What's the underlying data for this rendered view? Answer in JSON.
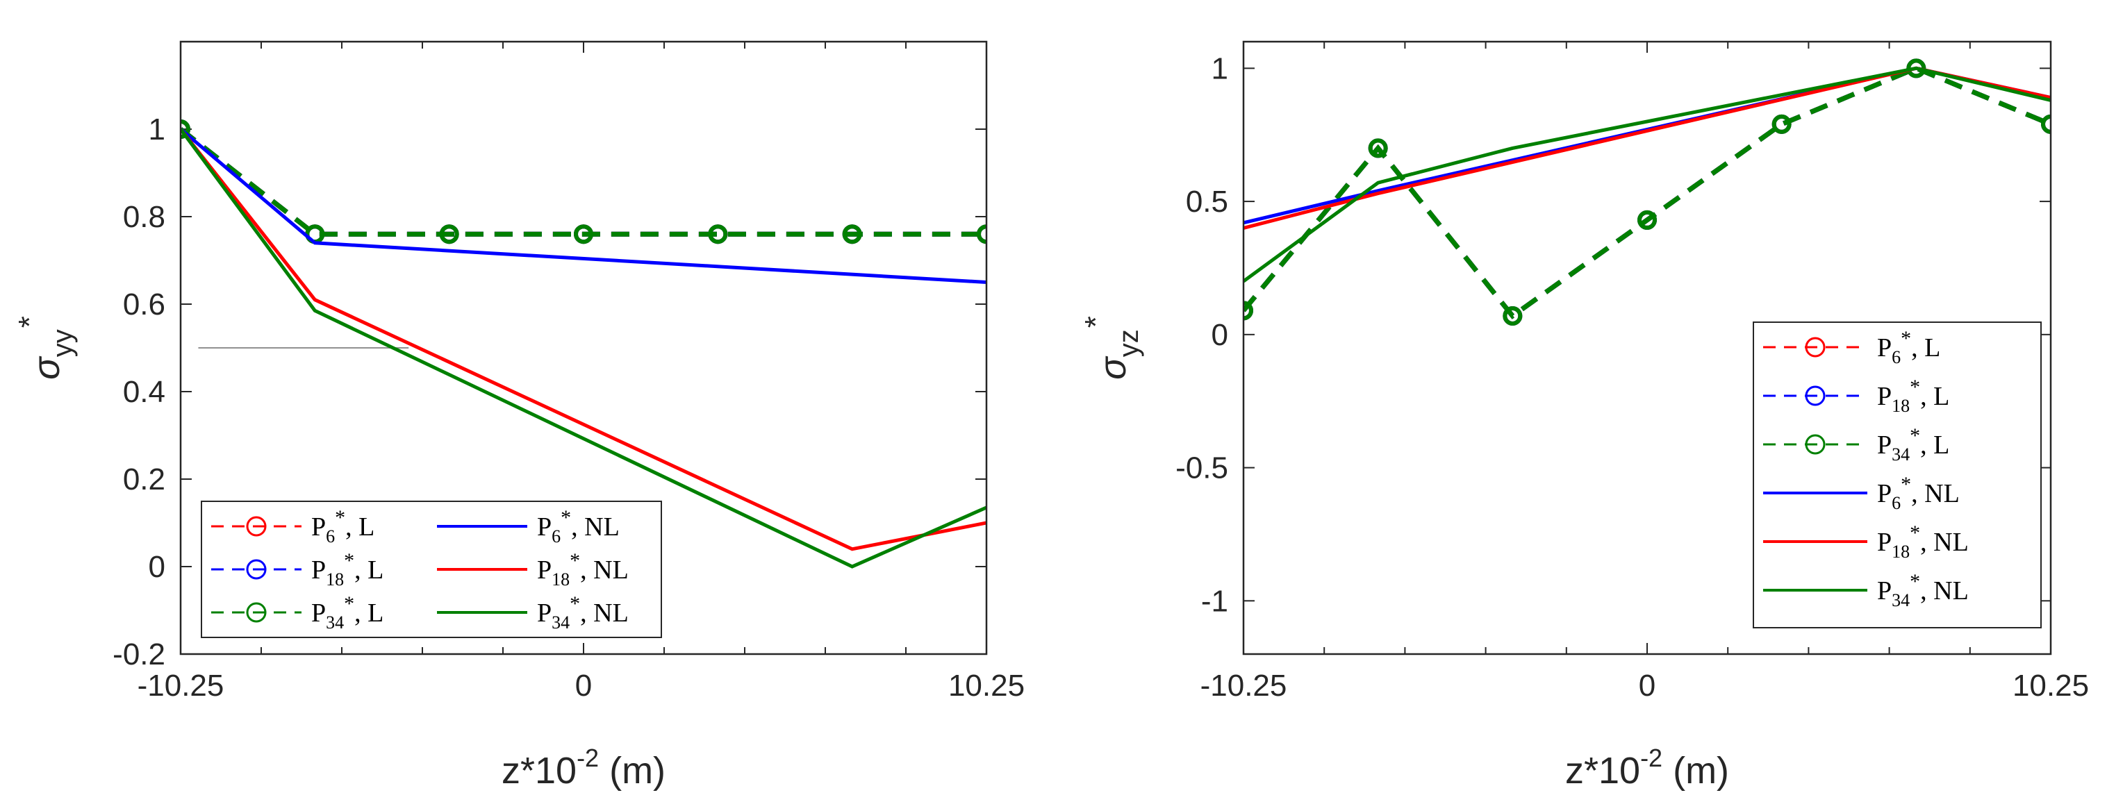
{
  "chart_data": [
    {
      "type": "line",
      "ylabel": "σ",
      "ylabel_sub": "yy",
      "ylabel_sup": "*",
      "xlabel": "z*10",
      "xlabel_sup": "-2",
      "xlabel_unit": " (m)",
      "xlim": [
        -10.25,
        10.25
      ],
      "ylim": [
        -0.2,
        1.2
      ],
      "xticks": [
        -10.25,
        0,
        10.25
      ],
      "xtick_labels": [
        "-10.25",
        "0",
        "10.25"
      ],
      "yticks": [
        -0.2,
        0,
        0.2,
        0.4,
        0.6,
        0.8,
        1
      ],
      "ytick_labels": [
        "-0.2",
        "0",
        "0.2",
        "0.4",
        "0.6",
        "0.8",
        "1"
      ],
      "legend_position": "bottom-left",
      "legend_columns": 2,
      "series": [
        {
          "name": "P6*, L",
          "base": "P",
          "sub": "6",
          "tag": ", L",
          "color": "#ff0000",
          "style": "dashed-circle",
          "x": [
            -10.25,
            -6.8333,
            -3.4167,
            0,
            3.4167,
            6.8333,
            10.25
          ],
          "values": [
            1,
            0.76,
            0.76,
            0.76,
            0.76,
            0.76,
            0.76
          ]
        },
        {
          "name": "P18*, L",
          "base": "P",
          "sub": "18",
          "tag": ", L",
          "color": "#0000ff",
          "style": "dashed-circle",
          "x": [
            -10.25,
            -6.8333,
            -3.4167,
            0,
            3.4167,
            6.8333,
            10.25
          ],
          "values": [
            1,
            0.76,
            0.76,
            0.76,
            0.76,
            0.76,
            0.76
          ]
        },
        {
          "name": "P34*, L",
          "base": "P",
          "sub": "34",
          "tag": ", L",
          "color": "#008000",
          "style": "dashed-circle",
          "x": [
            -10.25,
            -6.8333,
            -3.4167,
            0,
            3.4167,
            6.8333,
            10.25
          ],
          "values": [
            1,
            0.76,
            0.76,
            0.76,
            0.76,
            0.76,
            0.76
          ]
        },
        {
          "name": "P6*, NL",
          "base": "P",
          "sub": "6",
          "tag": ", NL",
          "color": "#0000ff",
          "style": "solid",
          "x": [
            -10.25,
            -6.8333,
            10.25
          ],
          "values": [
            1,
            0.74,
            0.65
          ]
        },
        {
          "name": "P18*, NL",
          "base": "P",
          "sub": "18",
          "tag": ", NL",
          "color": "#ff0000",
          "style": "solid",
          "x": [
            -10.25,
            -6.8333,
            6.8333,
            10.25
          ],
          "values": [
            1,
            0.61,
            0.04,
            0.1
          ]
        },
        {
          "name": "P34*, NL",
          "base": "P",
          "sub": "34",
          "tag": ", NL",
          "color": "#008000",
          "style": "solid",
          "x": [
            -10.25,
            -6.8333,
            6.8333,
            10.25
          ],
          "values": [
            1,
            0.585,
            0.0,
            0.135
          ]
        }
      ],
      "annotations": [
        {
          "type": "hline",
          "y": 0.5,
          "x": [
            -9.8,
            -4.45
          ],
          "color": "#909090"
        }
      ]
    },
    {
      "type": "line",
      "ylabel": "σ",
      "ylabel_sub": "yz",
      "ylabel_sup": "*",
      "xlabel": "z*10",
      "xlabel_sup": "-2",
      "xlabel_unit": " (m)",
      "xlim": [
        -10.25,
        10.25
      ],
      "ylim": [
        -1.2,
        1.1
      ],
      "xticks": [
        -10.25,
        0,
        10.25
      ],
      "xtick_labels": [
        "-10.25",
        "0",
        "10.25"
      ],
      "yticks": [
        -1,
        -0.5,
        0,
        0.5,
        1
      ],
      "ytick_labels": [
        "-1",
        "-0.5",
        "0",
        "0.5",
        "1"
      ],
      "legend_position": "bottom-right",
      "legend_columns": 1,
      "series": [
        {
          "name": "P6*, L",
          "base": "P",
          "sub": "6",
          "tag": ", L",
          "color": "#ff0000",
          "style": "dashed-circle",
          "x": [
            -10.25,
            -6.8333,
            -3.4167,
            0,
            3.4167,
            6.8333,
            10.25
          ],
          "values": [
            0.09,
            0.7,
            0.07,
            0.43,
            0.79,
            1.0,
            0.79
          ]
        },
        {
          "name": "P18*, L",
          "base": "P",
          "sub": "18",
          "tag": ", L",
          "color": "#0000ff",
          "style": "dashed-circle",
          "x": [
            -10.25,
            -6.8333,
            -3.4167,
            0,
            3.4167,
            6.8333,
            10.25
          ],
          "values": [
            0.09,
            0.7,
            0.07,
            0.43,
            0.79,
            1.0,
            0.79
          ]
        },
        {
          "name": "P34*, L",
          "base": "P",
          "sub": "34",
          "tag": ", L",
          "color": "#008000",
          "style": "dashed-circle",
          "x": [
            -10.25,
            -6.8333,
            -3.4167,
            0,
            3.4167,
            6.8333,
            10.25
          ],
          "values": [
            0.09,
            0.7,
            0.07,
            0.43,
            0.79,
            1.0,
            0.79
          ]
        },
        {
          "name": "P6*, NL",
          "base": "P",
          "sub": "6",
          "tag": ", NL",
          "color": "#0000ff",
          "style": "solid",
          "x": [
            -10.25,
            -6.8333,
            6.8333,
            10.25
          ],
          "values": [
            0.42,
            0.54,
            1.0,
            0.89
          ]
        },
        {
          "name": "P18*, NL",
          "base": "P",
          "sub": "18",
          "tag": ", NL",
          "color": "#ff0000",
          "style": "solid",
          "x": [
            -10.25,
            -6.8333,
            6.8333,
            10.25
          ],
          "values": [
            0.4,
            0.53,
            1.0,
            0.89
          ]
        },
        {
          "name": "P34*, NL",
          "base": "P",
          "sub": "34",
          "tag": ", NL",
          "color": "#008000",
          "style": "solid",
          "x": [
            -10.25,
            -6.8333,
            -3.4167,
            0,
            6.8333,
            10.25
          ],
          "values": [
            0.2,
            0.57,
            0.7,
            0.8,
            1.0,
            0.88
          ]
        }
      ]
    }
  ]
}
